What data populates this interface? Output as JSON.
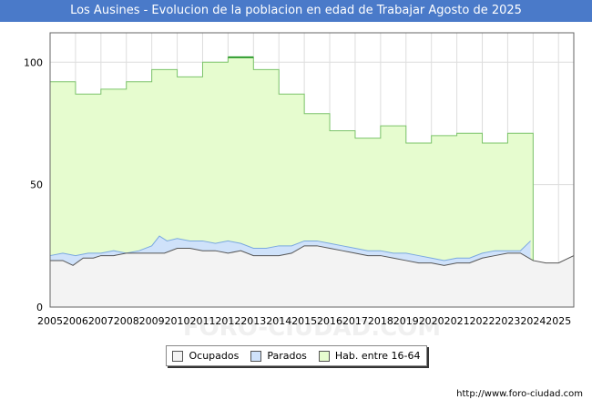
{
  "title": "Los Ausines - Evolucion de la poblacion en edad de Trabajar Agosto de 2025",
  "source": "http://www.foro-ciudad.com",
  "watermark": "FORO-CIUDAD.COM",
  "colors": {
    "title_bg": "#4a7ac9",
    "hab_fill": "#e6fccf",
    "hab_line": "#7cc46a",
    "parados_fill": "#cfe2fa",
    "parados_line": "#7aa8e0",
    "ocupados_fill": "#f3f3f3",
    "ocupados_line": "#555555"
  },
  "chart_data": {
    "type": "area",
    "title": "Los Ausines - Evolucion de la poblacion en edad de Trabajar Agosto de 2025",
    "xlabel": "",
    "ylabel": "",
    "xlim": [
      2005,
      2025.6
    ],
    "ylim": [
      0,
      112
    ],
    "y_ticks": [
      0,
      50,
      100
    ],
    "x_ticks": [
      "2005",
      "2006",
      "2007",
      "2008",
      "2009",
      "2010",
      "2011",
      "2012",
      "2013",
      "2014",
      "2015",
      "2016",
      "2017",
      "2018",
      "2019",
      "2020",
      "2021",
      "2022",
      "2023",
      "2024",
      "2025"
    ],
    "grid": true,
    "legend": [
      "Ocupados",
      "Parados",
      "Hab. entre 16-64"
    ],
    "series": [
      {
        "name": "Hab. entre 16-64",
        "step": true,
        "x": [
          2005,
          2006,
          2007,
          2008,
          2009,
          2010,
          2011,
          2012,
          2013,
          2014,
          2015,
          2016,
          2017,
          2018,
          2019,
          2020,
          2021,
          2022,
          2023
        ],
        "values": [
          92,
          87,
          89,
          92,
          97,
          94,
          100,
          102,
          97,
          87,
          79,
          72,
          69,
          74,
          67,
          70,
          71,
          67,
          71
        ],
        "end": 2024
      },
      {
        "name": "Parados",
        "x": [
          2005,
          2005.5,
          2006,
          2006.5,
          2007,
          2007.5,
          2008,
          2008.5,
          2009,
          2009.3,
          2009.6,
          2010,
          2010.5,
          2011,
          2011.5,
          2012,
          2012.5,
          2013,
          2013.5,
          2014,
          2014.5,
          2015,
          2015.5,
          2016,
          2016.5,
          2017,
          2017.5,
          2018,
          2018.5,
          2019,
          2019.5,
          2020,
          2020.5,
          2021,
          2021.5,
          2022,
          2022.5,
          2023,
          2023.5,
          2023.9
        ],
        "values": [
          21,
          22,
          21,
          22,
          22,
          23,
          22,
          23,
          25,
          29,
          27,
          28,
          27,
          27,
          26,
          27,
          26,
          24,
          24,
          25,
          25,
          27,
          27,
          26,
          25,
          24,
          23,
          23,
          22,
          22,
          21,
          20,
          19,
          20,
          20,
          22,
          23,
          23,
          23,
          27
        ]
      },
      {
        "name": "Ocupados",
        "x": [
          2005,
          2005.5,
          2005.9,
          2006.3,
          2006.7,
          2007,
          2007.5,
          2008,
          2008.5,
          2009,
          2009.5,
          2010,
          2010.5,
          2011,
          2011.5,
          2012,
          2012.5,
          2013,
          2013.5,
          2014,
          2014.5,
          2015,
          2015.5,
          2016,
          2016.5,
          2017,
          2017.5,
          2018,
          2018.5,
          2019,
          2019.5,
          2020,
          2020.5,
          2021,
          2021.5,
          2022,
          2022.5,
          2023,
          2023.5,
          2024,
          2024.5,
          2025,
          2025.6
        ],
        "values": [
          19,
          19,
          17,
          20,
          20,
          21,
          21,
          22,
          22,
          22,
          22,
          24,
          24,
          23,
          23,
          22,
          23,
          21,
          21,
          21,
          22,
          25,
          25,
          24,
          23,
          22,
          21,
          21,
          20,
          19,
          18,
          18,
          17,
          18,
          18,
          20,
          21,
          22,
          22,
          19,
          18,
          18,
          21
        ]
      }
    ]
  }
}
